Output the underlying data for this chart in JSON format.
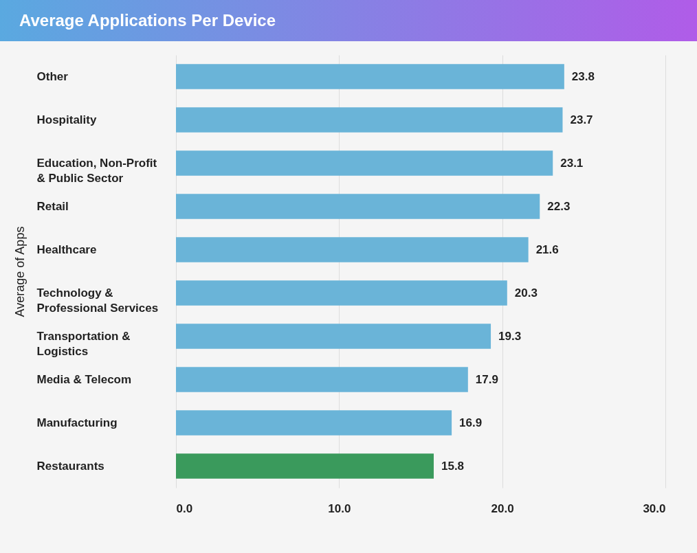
{
  "chart_data": {
    "type": "bar",
    "title": "Average Applications Per Device",
    "ylabel": "Average of Apps",
    "orientation": "horizontal",
    "categories": [
      "Other",
      "Hospitality",
      "Education, Non-Profit & Public Sector",
      "Retail",
      "Healthcare",
      "Technology & Professional Services",
      "Transportation & Logistics",
      "Media & Telecom",
      "Manufacturing",
      "Restaurants"
    ],
    "values": [
      23.8,
      23.7,
      23.1,
      22.3,
      21.6,
      20.3,
      19.3,
      17.9,
      16.9,
      15.8
    ],
    "colors": [
      "#6ab4d8",
      "#6ab4d8",
      "#6ab4d8",
      "#6ab4d8",
      "#6ab4d8",
      "#6ab4d8",
      "#6ab4d8",
      "#6ab4d8",
      "#6ab4d8",
      "#3a9a5c"
    ],
    "xlim": [
      0,
      30
    ],
    "xticks": [
      {
        "value": 0,
        "label": "0.0"
      },
      {
        "value": 10,
        "label": "10.0"
      },
      {
        "value": 20,
        "label": "20.0"
      },
      {
        "value": 30,
        "label": "30.0"
      }
    ],
    "grid": "x",
    "data_labels": true
  }
}
